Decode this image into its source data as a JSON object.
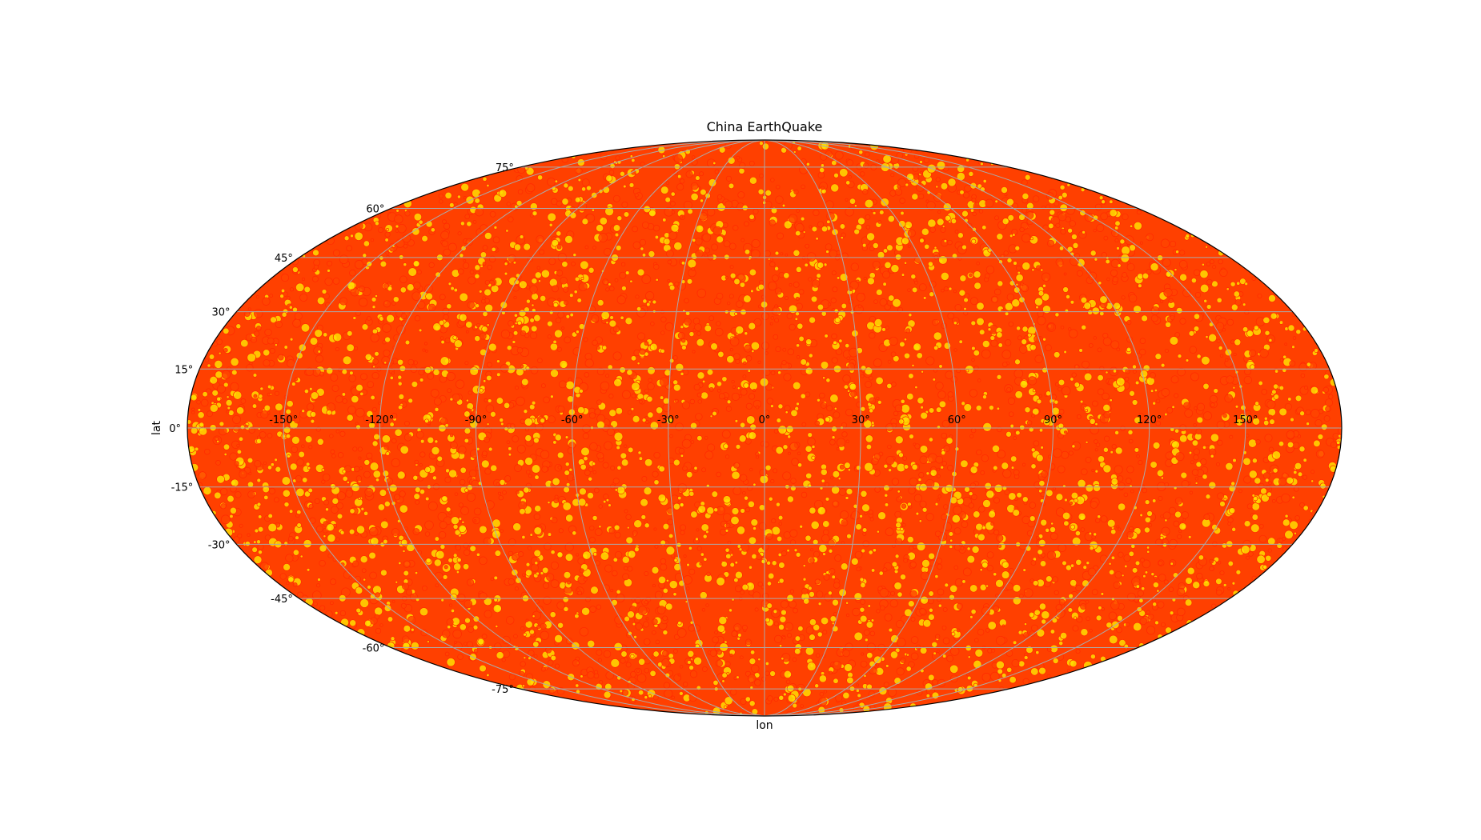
{
  "chart_data": {
    "type": "scatter",
    "projection": "mollweide",
    "title": "China EarthQuake",
    "xlabel": "lon",
    "ylabel": "lat",
    "xlim": [
      -180,
      180
    ],
    "ylim": [
      -90,
      90
    ],
    "lon_ticks": [
      "-150°",
      "-120°",
      "-90°",
      "-60°",
      "-30°",
      "0°",
      "30°",
      "60°",
      "90°",
      "120°",
      "150°"
    ],
    "lat_ticks": [
      "75°",
      "60°",
      "45°",
      "30°",
      "15°",
      "0°",
      "-15°",
      "-30°",
      "-45°",
      "-60°",
      "-75°"
    ],
    "grid": true,
    "marker_colors": [
      "#ffdd00",
      "#ff4400"
    ],
    "edge_color": "#ff2a00",
    "background_color": "#ff4000",
    "note_points": "dense scatter of circular markers covering the whole globe (lon -180..180, lat -90..90)"
  }
}
